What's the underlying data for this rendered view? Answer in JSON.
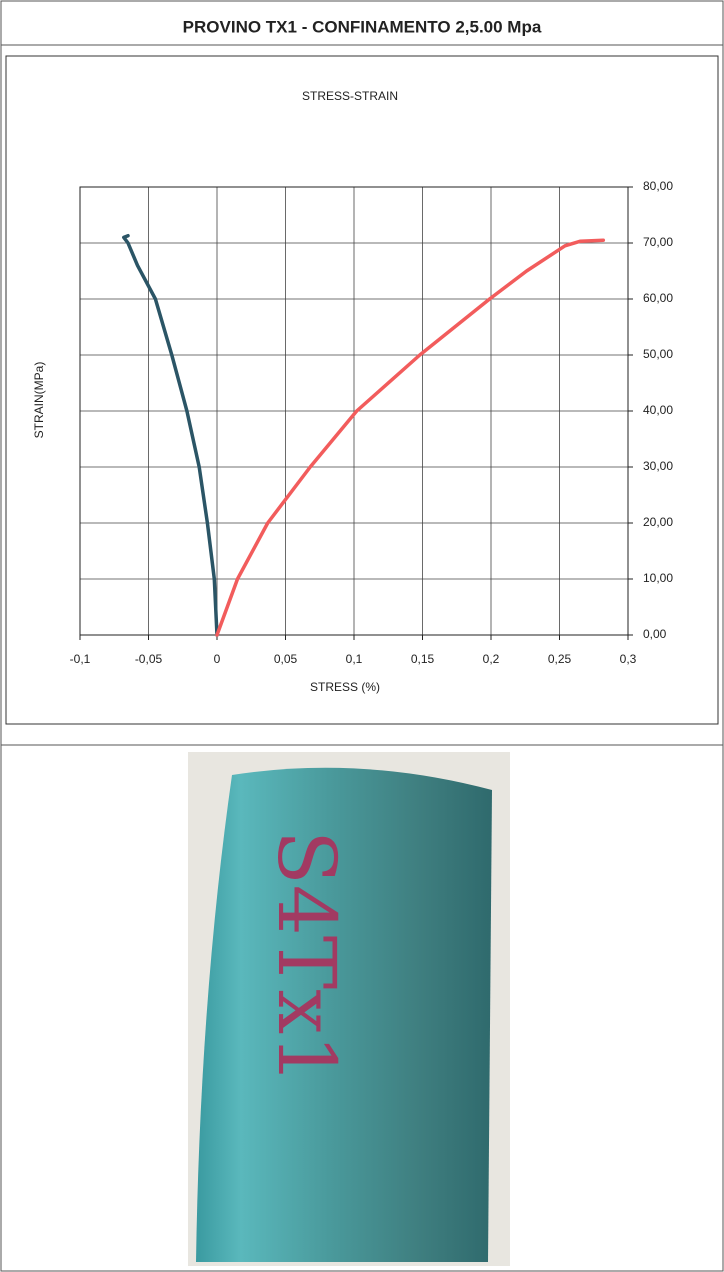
{
  "header": {
    "title": "PROVINO TX1 - CONFINAMENTO 2,5.00  Mpa"
  },
  "chart_data": {
    "type": "line",
    "title": "STRESS-STRAIN",
    "x_label": "STRESS (%)",
    "y_label": "STRAIN(MPa)",
    "xlim": [
      -0.1,
      0.3
    ],
    "xticks": [
      {
        "value": -0.1,
        "label": "-0,1"
      },
      {
        "value": -0.05,
        "label": "-0,05"
      },
      0,
      {
        "value": 0.05,
        "label": "0,05"
      },
      {
        "value": 0.1,
        "label": "0,1"
      },
      {
        "value": 0.15,
        "label": "0,15"
      },
      {
        "value": 0.2,
        "label": "0,2"
      },
      {
        "value": 0.25,
        "label": "0,25"
      },
      {
        "value": 0.3,
        "label": "0,3"
      }
    ],
    "ylim": [
      0,
      80
    ],
    "yticks": [
      {
        "value": 0,
        "label": "0,00"
      },
      {
        "value": 10,
        "label": "10,00"
      },
      {
        "value": 20,
        "label": "20,00"
      },
      {
        "value": 30,
        "label": "30,00"
      },
      {
        "value": 40,
        "label": "40,00"
      },
      {
        "value": 50,
        "label": "50,00"
      },
      {
        "value": 60,
        "label": "60,00"
      },
      {
        "value": 70,
        "label": "70,00"
      },
      {
        "value": 80,
        "label": "80,00"
      }
    ],
    "grid": true,
    "series": [
      {
        "color": "#2b5566",
        "x": [
          0,
          -0.002,
          -0.007,
          -0.013,
          -0.022,
          -0.033,
          -0.045,
          -0.058,
          -0.065,
          -0.068,
          -0.065
        ],
        "values": [
          0,
          10,
          20,
          30,
          40,
          50,
          60,
          66,
          70,
          71,
          71.3
        ]
      },
      {
        "color": "#f25c5c",
        "x": [
          0,
          0.015,
          0.037,
          0.068,
          0.102,
          0.148,
          0.199,
          0.226,
          0.254,
          0.265,
          0.282
        ],
        "values": [
          0,
          10,
          20,
          30,
          40,
          50,
          60,
          65,
          69.5,
          70.3,
          70.5
        ]
      }
    ]
  },
  "photo": {
    "label": "S4Tx1"
  }
}
